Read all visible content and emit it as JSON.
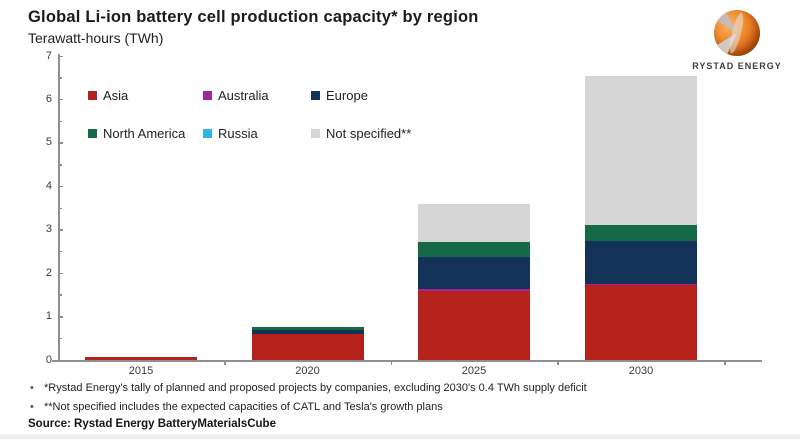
{
  "header": {
    "title": "Global Li-ion battery cell production capacity* by region",
    "subtitle": "Terawatt-hours (TWh)"
  },
  "logo": {
    "brand": "RYSTAD ENERGY"
  },
  "chart_data": {
    "type": "bar",
    "stacked": true,
    "title": "Global Li-ion battery cell production capacity* by region",
    "ylabel": "Terawatt-hours (TWh)",
    "categories": [
      "2015",
      "2020",
      "2025",
      "2030"
    ],
    "series": [
      {
        "name": "Asia",
        "color": "#b4221b",
        "values": [
          0.07,
          0.6,
          1.6,
          1.72
        ]
      },
      {
        "name": "Australia",
        "color": "#9d27a0",
        "values": [
          0,
          0,
          0.04,
          0.04
        ]
      },
      {
        "name": "Europe",
        "color": "#133257",
        "values": [
          0,
          0.1,
          0.73,
          0.97
        ]
      },
      {
        "name": "North America",
        "color": "#156947",
        "values": [
          0,
          0.05,
          0.35,
          0.37
        ]
      },
      {
        "name": "Russia",
        "color": "#2fb3e8",
        "values": [
          0,
          0,
          0,
          0
        ]
      },
      {
        "name": "Not specified",
        "color": "#d6d6d6",
        "values": [
          0,
          0,
          0.88,
          3.45
        ]
      }
    ],
    "totals": [
      0.07,
      0.75,
      3.6,
      6.55
    ],
    "ylim": [
      0,
      7
    ],
    "ytick_step": 1,
    "yminor_step": 0.5,
    "grid": false,
    "legend_position": "inside top-left"
  },
  "legend": {
    "items": [
      {
        "label": "Asia",
        "color": "#b4221b"
      },
      {
        "label": "Australia",
        "color": "#9d27a0"
      },
      {
        "label": "Europe",
        "color": "#133257"
      },
      {
        "label": "North America",
        "color": "#156947"
      },
      {
        "label": "Russia",
        "color": "#2fb3e8"
      },
      {
        "label": "Not specified**",
        "color": "#d6d6d6"
      }
    ]
  },
  "footnotes": [
    "*Rystad Energy's tally of planned and proposed projects by companies, excluding 2030's 0.4 TWh supply deficit",
    "**Not specified includes the expected capacities of CATL and Tesla's growth plans"
  ],
  "source": "Source: Rystad Energy BatteryMaterialsCube"
}
